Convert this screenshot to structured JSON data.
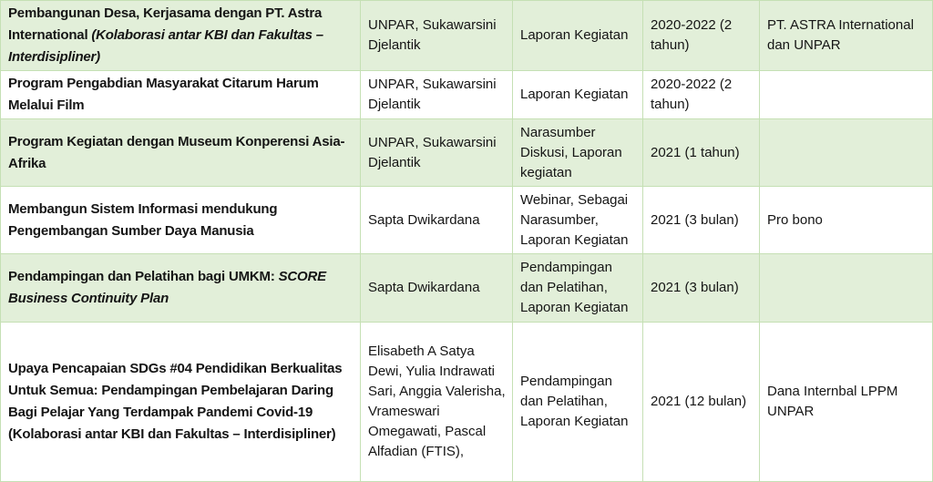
{
  "colors": {
    "band-fill": "#e2efd9",
    "border": "#c5e0b4",
    "text": "#151515"
  },
  "table": {
    "rows": [
      {
        "activity": "Pembangunan Desa, Kerjasama dengan PT. Astra International ",
        "activity_italic": "(Kolaborasi antar KBI dan Fakultas – Interdisipliner)",
        "team": "UNPAR, Sukawarsini Djelantik",
        "output": "Laporan Kegiatan",
        "period": "2020-2022 (2 tahun)",
        "funding": "PT. ASTRA International dan UNPAR"
      },
      {
        "activity": "Program Pengabdian Masyarakat Citarum Harum Melalui Film",
        "activity_italic": "",
        "team": "UNPAR, Sukawarsini Djelantik",
        "output": "Laporan Kegiatan",
        "period": "2020-2022 (2 tahun)",
        "funding": ""
      },
      {
        "activity": "Program Kegiatan dengan Museum Konperensi Asia-Afrika",
        "activity_italic": "",
        "team": "UNPAR, Sukawarsini Djelantik",
        "output": "Narasumber Diskusi, Laporan kegiatan",
        "period": "2021 (1 tahun)",
        "funding": ""
      },
      {
        "activity": "Membangun Sistem Informasi mendukung Pengembangan Sumber Daya Manusia",
        "activity_italic": "",
        "team": "Sapta Dwikardana",
        "output": "Webinar, Sebagai Narasumber, Laporan Kegiatan",
        "period": "2021 (3 bulan)",
        "funding": "Pro bono"
      },
      {
        "activity": "Pendampingan dan Pelatihan bagi UMKM: ",
        "activity_italic": "SCORE Business Continuity Plan",
        "team": "Sapta Dwikardana",
        "output": "Pendampingan dan Pelatihan, Laporan Kegiatan",
        "period": "2021 (3 bulan)",
        "funding": ""
      },
      {
        "activity": "Upaya Pencapaian SDGs #04 Pendidikan Berkualitas Untuk Semua: Pendampingan Pembelajaran Daring Bagi Pelajar Yang Terdampak Pandemi Covid-19 (Kolaborasi antar KBI dan Fakultas – Interdisipliner)",
        "activity_italic": "",
        "team": "Elisabeth A Satya Dewi, Yulia Indrawati Sari, Anggia Valerisha, Vrameswari Omegawati, Pascal Alfadian (FTIS),",
        "output": "Pendampingan dan Pelatihan, Laporan Kegiatan",
        "period": "2021 (12 bulan)",
        "funding": "Dana Internbal LPPM UNPAR"
      }
    ]
  }
}
